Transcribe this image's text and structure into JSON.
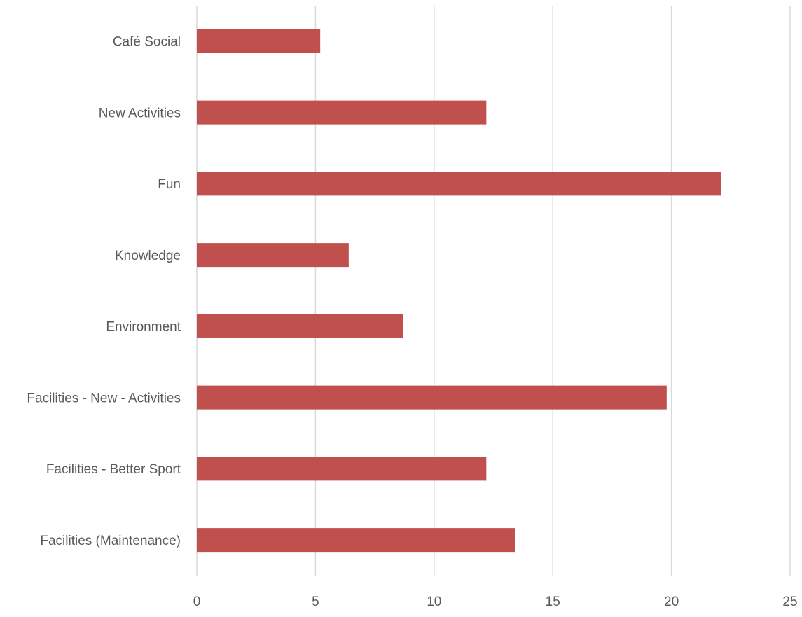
{
  "chart_data": {
    "type": "bar",
    "orientation": "horizontal",
    "title": "",
    "xlabel": "",
    "ylabel": "",
    "categories": [
      "Café Social",
      "New Activities",
      "Fun",
      "Knowledge",
      "Environment",
      "Facilities - New - Activities",
      "Facilities - Better Sport",
      "Facilities (Maintenance)"
    ],
    "values": [
      5.2,
      12.2,
      22.1,
      6.4,
      8.7,
      19.8,
      12.2,
      13.4
    ],
    "xlim": [
      0,
      25
    ],
    "x_ticks": [
      "0",
      "5",
      "10",
      "15",
      "20",
      "25"
    ],
    "grid": "vertical",
    "legend": "none",
    "bar_color": "#C0504D",
    "gridline_color": "#D9D9D9",
    "label_color": "#595959"
  }
}
